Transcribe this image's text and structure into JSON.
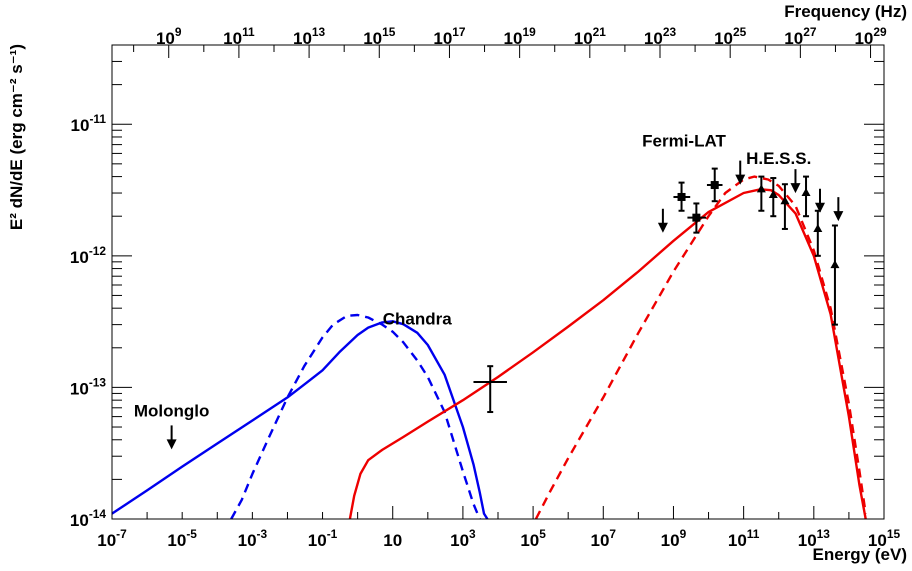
{
  "chart_data": {
    "type": "scatter",
    "title": "",
    "xlabel": "Energy (eV)",
    "ylabel": "E² dN/dE (erg cm⁻² s⁻¹)",
    "x2label": "Frequency (Hz)",
    "xscale": "log",
    "yscale": "log",
    "xlim": [
      1e-07,
      1000000000000000.0
    ],
    "ylim": [
      1e-14,
      4e-11
    ],
    "x2lim": [
      24180000.0,
      2.418e+29
    ],
    "x_ticks": [
      {
        "value": 1e-07,
        "base": "10",
        "exp": "-7"
      },
      {
        "value": 1e-05,
        "base": "10",
        "exp": "-5"
      },
      {
        "value": 0.001,
        "base": "10",
        "exp": "-3"
      },
      {
        "value": 0.1,
        "base": "10",
        "exp": "-1"
      },
      {
        "value": 10,
        "base": "10",
        "exp": ""
      },
      {
        "value": 1000.0,
        "base": "10",
        "exp": "3"
      },
      {
        "value": 100000.0,
        "base": "10",
        "exp": "5"
      },
      {
        "value": 10000000.0,
        "base": "10",
        "exp": "7"
      },
      {
        "value": 1000000000.0,
        "base": "10",
        "exp": "9"
      },
      {
        "value": 100000000000.0,
        "base": "10",
        "exp": "11"
      },
      {
        "value": 10000000000000.0,
        "base": "10",
        "exp": "13"
      },
      {
        "value": 1000000000000000.0,
        "base": "10",
        "exp": "15"
      }
    ],
    "x2_ticks": [
      {
        "value": 1000000000.0,
        "base": "10",
        "exp": "9"
      },
      {
        "value": 100000000000.0,
        "base": "10",
        "exp": "11"
      },
      {
        "value": 10000000000000.0,
        "base": "10",
        "exp": "13"
      },
      {
        "value": 1000000000000000.0,
        "base": "10",
        "exp": "15"
      },
      {
        "value": 1e+17,
        "base": "10",
        "exp": "17"
      },
      {
        "value": 1e+19,
        "base": "10",
        "exp": "19"
      },
      {
        "value": 1e+21,
        "base": "10",
        "exp": "21"
      },
      {
        "value": 1e+23,
        "base": "10",
        "exp": "23"
      },
      {
        "value": 1e+25,
        "base": "10",
        "exp": "25"
      },
      {
        "value": 1e+27,
        "base": "10",
        "exp": "27"
      },
      {
        "value": 1e+29,
        "base": "10",
        "exp": "29"
      }
    ],
    "y_ticks": [
      {
        "value": 1e-14,
        "base": "10",
        "exp": "-14"
      },
      {
        "value": 1e-13,
        "base": "10",
        "exp": "-13"
      },
      {
        "value": 1e-12,
        "base": "10",
        "exp": "-12"
      },
      {
        "value": 1e-11,
        "base": "10",
        "exp": "-11"
      }
    ],
    "annotations": [
      {
        "text": "Molonglo",
        "x": 5e-06,
        "y": 6e-14
      },
      {
        "text": "Chandra",
        "x": 50,
        "y": 3e-13
      },
      {
        "text": "Fermi-LAT",
        "x": 2000000000.0,
        "y": 6.8e-12
      },
      {
        "text": "H.E.S.S.",
        "x": 1000000000000.0,
        "y": 5e-12
      }
    ],
    "series": [
      {
        "color": "#0000ee",
        "style": "solid",
        "x": [
          1e-07,
          1e-06,
          1e-05,
          0.0001,
          0.001,
          0.01,
          0.03,
          0.1,
          0.3,
          1,
          2,
          5,
          10,
          20,
          50,
          100,
          300,
          1000,
          2000,
          3000,
          4000,
          5000
        ],
        "y": [
          1.1e-14,
          1.65e-14,
          2.5e-14,
          3.75e-14,
          5.6e-14,
          8.4e-14,
          1.05e-13,
          1.35e-13,
          1.85e-13,
          2.5e-13,
          2.85e-13,
          3.12e-13,
          3.18e-13,
          3.02e-13,
          2.6e-13,
          2.1e-13,
          1.25e-13,
          5e-14,
          2.6e-14,
          1.6e-14,
          1.1e-14,
          1e-14
        ]
      },
      {
        "color": "#0000ee",
        "style": "dashed",
        "x": [
          0.00025,
          0.0005,
          0.001,
          0.003,
          0.01,
          0.03,
          0.1,
          0.2,
          0.5,
          1,
          2,
          5,
          10,
          20,
          50,
          100,
          300,
          1000,
          2000,
          3000
        ],
        "y": [
          1e-14,
          1.4e-14,
          2.2e-14,
          4.2e-14,
          8.4e-14,
          1.45e-13,
          2.4e-13,
          3e-13,
          3.5e-13,
          3.55e-13,
          3.4e-13,
          3e-13,
          2.65e-13,
          2.2e-13,
          1.6e-13,
          1.2e-13,
          6.5e-14,
          2.3e-14,
          1.3e-14,
          1e-14
        ]
      },
      {
        "color": "#ee0000",
        "style": "solid",
        "x": [
          0.6,
          0.8,
          1.2,
          2,
          5,
          20,
          100,
          1000,
          10000.0,
          100000.0,
          1000000.0,
          10000000.0,
          100000000.0,
          1000000000.0,
          10000000000.0,
          100000000000.0,
          300000000000.0,
          600000000000.0,
          1000000000000.0,
          3000000000000.0,
          10000000000000.0,
          30000000000000.0,
          100000000000000.0,
          200000000000000.0,
          300000000000000.0
        ],
        "y": [
          1e-14,
          1.5e-14,
          2.2e-14,
          2.8e-14,
          3.35e-14,
          4.2e-14,
          5.5e-14,
          8e-14,
          1.2e-13,
          1.85e-13,
          2.9e-13,
          4.6e-13,
          7.6e-13,
          1.3e-12,
          2.15e-12,
          3e-12,
          3.2e-12,
          3.15e-12,
          2.9e-12,
          2.1e-12,
          1e-12,
          3.6e-13,
          6e-14,
          1.8e-14,
          1e-14
        ]
      },
      {
        "color": "#ee0000",
        "style": "dashed",
        "x": [
          120000.0,
          300000.0,
          1000000.0,
          10000000.0,
          100000000.0,
          1000000000.0,
          10000000000.0,
          30000000000.0,
          100000000000.0,
          200000000000.0,
          500000000000.0,
          1000000000000.0,
          3000000000000.0,
          10000000000000.0,
          30000000000000.0,
          100000000000000.0,
          200000000000000.0,
          300000000000000.0
        ],
        "y": [
          1e-14,
          1.6e-14,
          2.9e-14,
          8.4e-14,
          2.6e-13,
          7.6e-13,
          2e-12,
          3e-12,
          3.8e-12,
          4e-12,
          3.8e-12,
          3.4e-12,
          2.4e-12,
          1.1e-12,
          4e-13,
          7.5e-14,
          2.3e-14,
          1.1e-14
        ]
      }
    ],
    "upper_limits": [
      {
        "x": 5e-06,
        "y": 3.5e-14
      },
      {
        "x": 500000000.0,
        "y": 1.55e-12
      },
      {
        "x": 80000000000.0,
        "y": 3.6e-12
      },
      {
        "x": 3000000000000.0,
        "y": 3.1e-12
      },
      {
        "x": 15000000000000.0,
        "y": 2.2e-12
      },
      {
        "x": 50000000000000.0,
        "y": 1.9e-12
      }
    ],
    "points": [
      {
        "x": 6000,
        "y": 1.1e-13,
        "xerr": [
          2000,
          18000
        ],
        "yerr": [
          6.5e-14,
          1.45e-13
        ],
        "marker": "none"
      },
      {
        "x": 1700000000.0,
        "y": 2.8e-12,
        "xerr": [
          1000000000.0,
          3000000000.0
        ],
        "yerr": [
          2.2e-12,
          3.6e-12
        ],
        "marker": "square"
      },
      {
        "x": 4500000000.0,
        "y": 1.95e-12,
        "xerr": [
          2500000000.0,
          8500000000.0
        ],
        "yerr": [
          1.5e-12,
          2.5e-12
        ],
        "marker": "square"
      },
      {
        "x": 15000000000.0,
        "y": 3.45e-12,
        "xerr": [
          9000000000.0,
          25000000000.0
        ],
        "yerr": [
          2.6e-12,
          4.6e-12
        ],
        "marker": "square"
      },
      {
        "x": 320000000000.0,
        "y": 3.2e-12,
        "xerr": [
          null,
          null
        ],
        "yerr": [
          2.2e-12,
          4e-12
        ],
        "marker": "triangle"
      },
      {
        "x": 700000000000.0,
        "y": 2.9e-12,
        "xerr": [
          null,
          null
        ],
        "yerr": [
          2e-12,
          3.9e-12
        ],
        "marker": "triangle"
      },
      {
        "x": 1500000000000.0,
        "y": 2.6e-12,
        "xerr": [
          null,
          null
        ],
        "yerr": [
          1.6e-12,
          3.5e-12
        ],
        "marker": "triangle"
      },
      {
        "x": 6000000000000.0,
        "y": 3e-12,
        "xerr": [
          null,
          null
        ],
        "yerr": [
          2e-12,
          4e-12
        ],
        "marker": "triangle"
      },
      {
        "x": 13000000000000.0,
        "y": 1.6e-12,
        "xerr": [
          null,
          null
        ],
        "yerr": [
          1e-12,
          2.2e-12
        ],
        "marker": "triangle"
      },
      {
        "x": 40000000000000.0,
        "y": 8.5e-13,
        "xerr": [
          null,
          null
        ],
        "yerr": [
          3e-13,
          1.7e-12
        ],
        "marker": "triangle"
      }
    ],
    "grid": false,
    "legend": "none"
  }
}
